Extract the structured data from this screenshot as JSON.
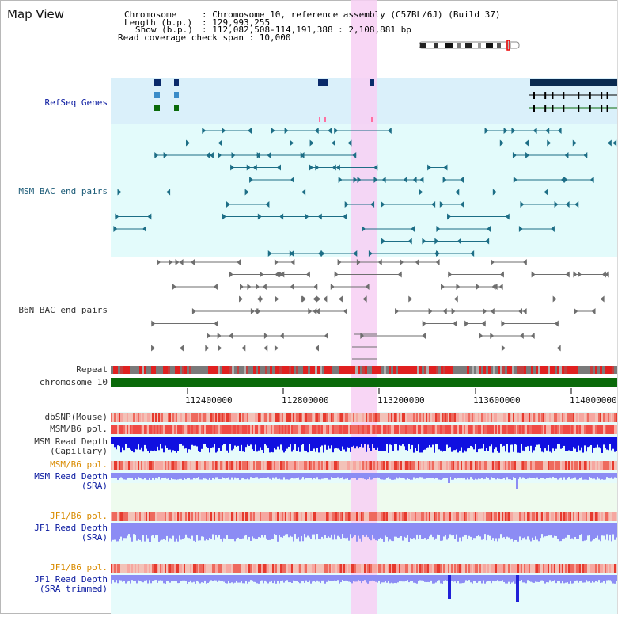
{
  "title": "Map View",
  "header": {
    "chromosome_key": "Chromosome",
    "chromosome_value": ": Chromosome 10, reference assembly (C57BL/6J) (Build 37)",
    "length_key": "Length (b.p.)",
    "length_value": ": 129,993,255",
    "show_key": "Show (b.p.)",
    "show_value": ": 112,082,508-114,191,388 : 2,108,881 bp",
    "coverage_line": "Read coverage check span : 10,000"
  },
  "tracks": {
    "refseq": "RefSeq Genes",
    "msm_bac": "MSM BAC end pairs",
    "b6n_bac": "B6N BAC end pairs",
    "repeat": "Repeat",
    "chromosome": "chromosome 10",
    "dbsnp": "dbSNP(Mouse)",
    "msm_b6_pol_1": "MSM/B6 pol.",
    "msm_read_depth_cap_1": "MSM Read Depth",
    "msm_read_depth_cap_2": "(Capillary)",
    "msm_b6_pol_2": "MSM/B6 pol.",
    "msm_read_depth_sra_1": "MSM Read Depth",
    "msm_read_depth_sra_2": "(SRA)",
    "jf1_b6_pol_1": "JF1/B6 pol.",
    "jf1_read_depth_sra_1": "JF1 Read Depth",
    "jf1_read_depth_sra_2": "(SRA)",
    "jf1_b6_pol_2": "JF1/B6 pol.",
    "jf1_read_depth_trim_1": "JF1 Read Depth",
    "jf1_read_depth_trim_2": "(SRA trimmed)"
  },
  "axis": {
    "ticks": [
      "112400000",
      "112800000",
      "113200000",
      "113600000",
      "114000000"
    ]
  },
  "colors": {
    "refseq_bg": "#daf0fa",
    "bac_bg": "#e3fbfb",
    "highlight": "#f7cff3",
    "chromosome_bar": "#0a6a0a",
    "depth_capillary": "#1010e0",
    "depth_sra": "#8c8cf4",
    "pol_red": "#e83030",
    "msm_bac": "#1d6e86",
    "b6n_bac": "#6e6e6e",
    "label_orange": "#d98b00"
  }
}
